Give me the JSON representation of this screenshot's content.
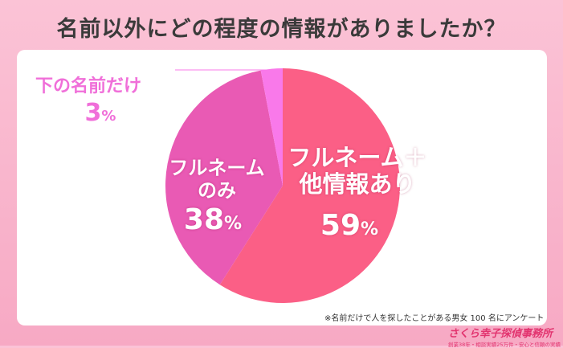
{
  "header": {
    "title": "名前以外にどの程度の情報がありましたか？"
  },
  "chart_data": {
    "type": "pie",
    "categories": [
      "フルネーム＋他情報あり",
      "フルネームのみ",
      "下の名前だけ"
    ],
    "values": [
      59,
      38,
      3
    ],
    "unit": "%",
    "colors": [
      "#fb5f86",
      "#e95ab4",
      "#f979ea"
    ]
  },
  "labels": {
    "full_plus_line1": "フルネーム＋",
    "full_plus_line2": "他情報あり",
    "full_plus_value": "59",
    "full_only_line1": "フルネーム",
    "full_only_line2": "のみ",
    "full_only_value": "38",
    "first_only": "下の名前だけ",
    "first_only_value": "3",
    "percent_sign": "%"
  },
  "footnote": "※名前だけで人を探したことがある男女 100 名にアンケート",
  "brand": {
    "name": "さくら幸子探偵事務所",
    "tagline": "創業38年・相談実績25万件・安心と信頼の実績"
  }
}
